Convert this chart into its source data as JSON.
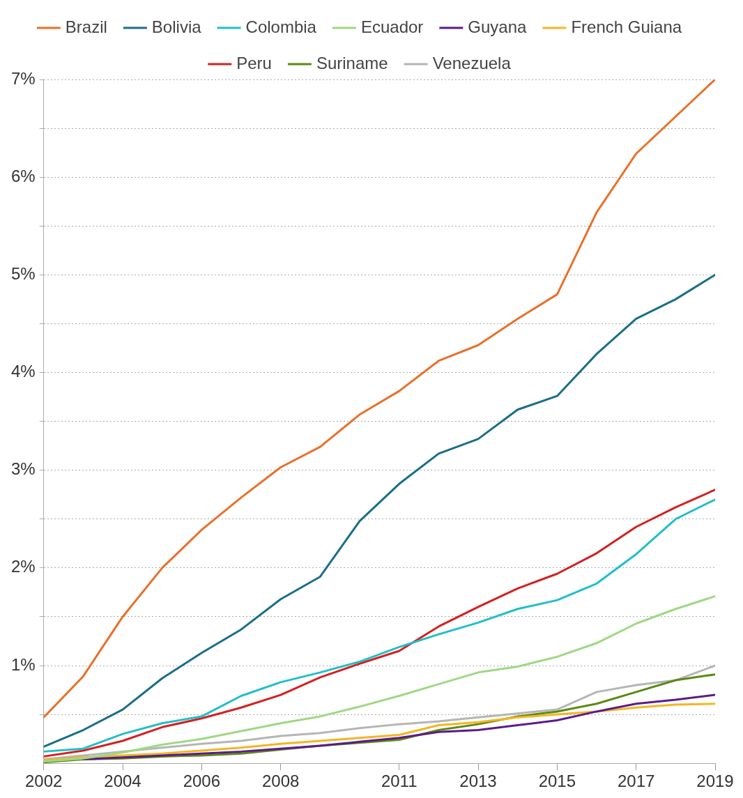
{
  "chart_data": {
    "type": "line",
    "x": [
      2002,
      2003,
      2004,
      2005,
      2006,
      2007,
      2008,
      2009,
      2010,
      2011,
      2012,
      2013,
      2014,
      2015,
      2016,
      2017,
      2018,
      2019
    ],
    "series": [
      {
        "name": "Brazil",
        "color": "#e8702a",
        "values": [
          0.47,
          0.89,
          1.5,
          2.0,
          2.39,
          2.72,
          3.03,
          3.24,
          3.57,
          3.81,
          4.12,
          4.28,
          4.55,
          4.8,
          5.64,
          6.24,
          6.62,
          7.0
        ]
      },
      {
        "name": "Bolivia",
        "color": "#1a6e87",
        "values": [
          0.17,
          0.34,
          0.55,
          0.87,
          1.13,
          1.37,
          1.68,
          1.91,
          2.48,
          2.86,
          3.17,
          3.32,
          3.62,
          3.76,
          4.19,
          4.55,
          4.75,
          5.0
        ]
      },
      {
        "name": "Colombia",
        "color": "#1fbfc9",
        "values": [
          0.12,
          0.15,
          0.3,
          0.41,
          0.48,
          0.69,
          0.83,
          0.93,
          1.04,
          1.19,
          1.32,
          1.44,
          1.58,
          1.67,
          1.84,
          2.14,
          2.5,
          2.7
        ]
      },
      {
        "name": "Ecuador",
        "color": "#9ed884",
        "values": [
          0.02,
          0.05,
          0.11,
          0.19,
          0.25,
          0.33,
          0.41,
          0.48,
          0.58,
          0.69,
          0.81,
          0.93,
          0.99,
          1.09,
          1.23,
          1.43,
          1.58,
          1.71
        ]
      },
      {
        "name": "Guyana",
        "color": "#5c1a8c",
        "values": [
          null,
          0.04,
          0.06,
          0.08,
          0.1,
          0.12,
          0.15,
          0.18,
          0.22,
          0.26,
          0.32,
          0.34,
          0.39,
          0.44,
          0.53,
          0.61,
          0.65,
          0.7
        ]
      },
      {
        "name": "French Guiana",
        "color": "#f5b521",
        "values": [
          0.03,
          0.06,
          0.08,
          0.1,
          0.13,
          0.16,
          0.2,
          0.23,
          0.26,
          0.29,
          0.39,
          0.42,
          0.47,
          0.5,
          0.53,
          0.57,
          0.6,
          0.61
        ]
      },
      {
        "name": "Peru",
        "color": "#d42020",
        "values": [
          0.07,
          0.13,
          0.23,
          0.37,
          0.46,
          0.57,
          0.7,
          0.88,
          1.02,
          1.15,
          1.4,
          1.6,
          1.79,
          1.94,
          2.15,
          2.42,
          2.62,
          2.8
        ]
      },
      {
        "name": "Suriname",
        "color": "#5a8a12",
        "values": [
          0.01,
          0.04,
          0.05,
          0.07,
          0.08,
          0.1,
          0.14,
          0.18,
          0.21,
          0.24,
          0.34,
          0.4,
          0.48,
          0.53,
          0.61,
          0.73,
          0.85,
          0.91
        ]
      },
      {
        "name": "Venezuela",
        "color": "#b5b5b5",
        "values": [
          0.04,
          0.08,
          0.12,
          0.16,
          0.2,
          0.23,
          0.28,
          0.31,
          0.36,
          0.4,
          0.43,
          0.47,
          0.51,
          0.55,
          0.73,
          0.8,
          0.85,
          1.0
        ]
      }
    ],
    "xlim": [
      2002,
      2019
    ],
    "xticks": [
      2002,
      2004,
      2006,
      2008,
      2011,
      2013,
      2015,
      2017,
      2019
    ],
    "ylim": [
      0,
      7
    ],
    "yticks": [
      {
        "value": 0,
        "label": null
      },
      {
        "value": 0.5,
        "label": null
      },
      {
        "value": 1,
        "label": "1%"
      },
      {
        "value": 1.5,
        "label": null
      },
      {
        "value": 2,
        "label": "2%"
      },
      {
        "value": 2.5,
        "label": null
      },
      {
        "value": 3,
        "label": "3%"
      },
      {
        "value": 3.5,
        "label": null
      },
      {
        "value": 4,
        "label": "4%"
      },
      {
        "value": 4.5,
        "label": null
      },
      {
        "value": 5,
        "label": "5%"
      },
      {
        "value": 5.5,
        "label": null
      },
      {
        "value": 6,
        "label": "6%"
      },
      {
        "value": 6.5,
        "label": null
      },
      {
        "value": 7,
        "label": "7%"
      }
    ],
    "grid": "y",
    "legend": "top",
    "marker": "none",
    "line_style": "solid"
  }
}
